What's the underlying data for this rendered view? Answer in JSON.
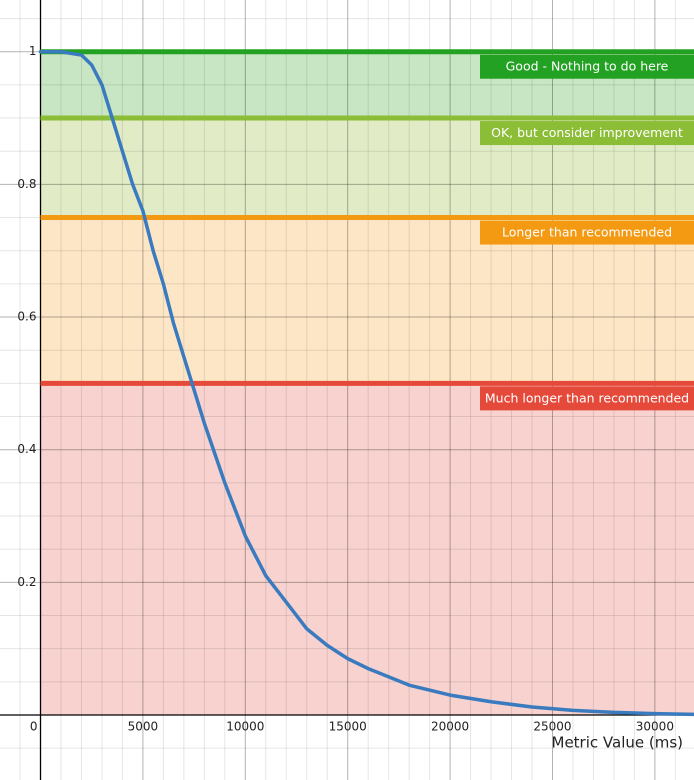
{
  "chart_data": {
    "type": "line",
    "x_label": "Metric Value (ms)",
    "xlim": [
      -1978,
      31910
    ],
    "ylim": [
      -0.098,
      1.078
    ],
    "xticks": [
      0,
      5000,
      10000,
      15000,
      20000,
      25000,
      30000
    ],
    "yticks": [
      0.2,
      0.4,
      0.6,
      0.8,
      1
    ],
    "minor_xticks": [
      -1000,
      1000,
      2000,
      3000,
      4000,
      6000,
      7000,
      8000,
      9000,
      11000,
      12000,
      13000,
      14000,
      16000,
      17000,
      18000,
      19000,
      21000,
      22000,
      23000,
      24000,
      26000,
      27000,
      28000,
      29000,
      31000
    ],
    "minor_yticks": [
      -0.05,
      0.05,
      0.1,
      0.15,
      0.25,
      0.3,
      0.35,
      0.45,
      0.5,
      0.55,
      0.65,
      0.7,
      0.75,
      0.85,
      0.9,
      0.95,
      1.05
    ],
    "grid": true,
    "bands": [
      {
        "label": "Good - Nothing to do here",
        "from": 0.9,
        "to": 1,
        "color": "#23a123",
        "fill": "#c9e6c4"
      },
      {
        "label": "OK, but consider improvement",
        "from": 0.75,
        "to": 0.9,
        "color": "#8bbd36",
        "fill": "#e1ecc7"
      },
      {
        "label": "Longer than recommended",
        "from": 0.5,
        "to": 0.75,
        "color": "#f39a12",
        "fill": "#fde6c6"
      },
      {
        "label": "Much longer than recommended",
        "from": 0,
        "to": 0.5,
        "color": "#e5493a",
        "fill": "#f7d2cf"
      }
    ],
    "series": [
      {
        "color": "#3a7bbf",
        "x": [
          0,
          1000,
          2000,
          2500,
          3000,
          3500,
          4000,
          4500,
          5000,
          5500,
          6000,
          6500,
          7000,
          7500,
          8000,
          9000,
          10000,
          11000,
          12000,
          13000,
          14000,
          15000,
          16000,
          18000,
          20000,
          22000,
          24000,
          26000,
          28000,
          30000,
          31900
        ],
        "values": [
          1,
          1,
          0.995,
          0.98,
          0.95,
          0.9,
          0.85,
          0.8,
          0.76,
          0.7,
          0.65,
          0.59,
          0.54,
          0.49,
          0.44,
          0.35,
          0.27,
          0.21,
          0.17,
          0.13,
          0.105,
          0.085,
          0.07,
          0.045,
          0.03,
          0.02,
          0.012,
          0.007,
          0.004,
          0.002,
          0.001
        ]
      }
    ]
  }
}
